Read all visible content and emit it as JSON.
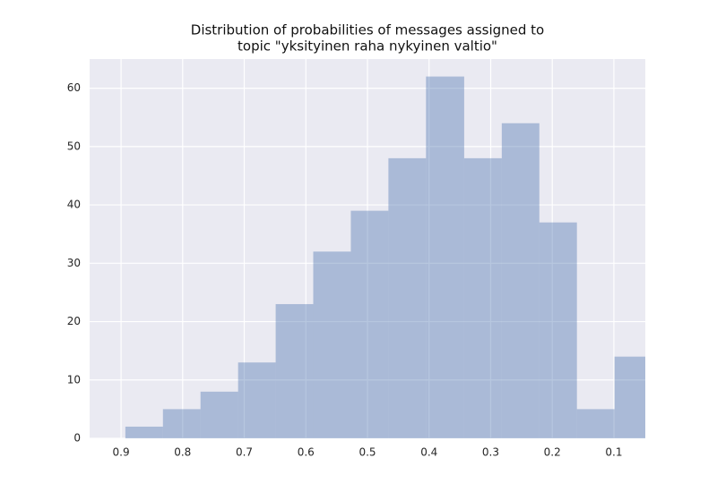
{
  "chart_data": {
    "type": "histogram",
    "title": [
      "Distribution of probabilities of messages assigned to",
      "topic \"yksityinen raha nykyinen valtio\""
    ],
    "bins": [
      0.893,
      0.832,
      0.771,
      0.71,
      0.649,
      0.588,
      0.527,
      0.466,
      0.405,
      0.343,
      0.282,
      0.221,
      0.16,
      0.099,
      0.038
    ],
    "values": [
      2,
      5,
      8,
      13,
      23,
      32,
      39,
      48,
      62,
      48,
      54,
      37,
      5,
      14
    ],
    "color": "#4c72b0",
    "xlim": [
      0.951,
      0.049
    ],
    "xticks": [
      0.9,
      0.8,
      0.7,
      0.6,
      0.5,
      0.4,
      0.3,
      0.2,
      0.1
    ],
    "ylim": [
      0,
      65
    ],
    "yticks": [
      0,
      10,
      20,
      30,
      40,
      50,
      60
    ],
    "grid": true
  }
}
